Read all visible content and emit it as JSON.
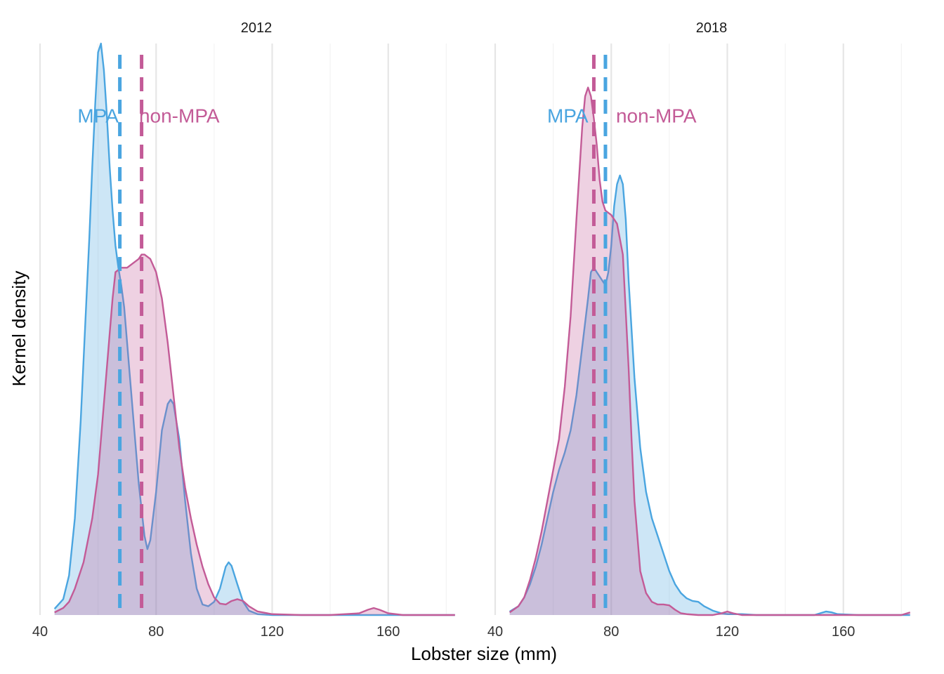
{
  "chart_data": {
    "type": "area",
    "xlabel": "Lobster size (mm)",
    "ylabel": "Kernel density",
    "xlim": [
      40,
      185
    ],
    "ylim": [
      0,
      0.065
    ],
    "x_ticks": [
      40,
      80,
      120,
      160
    ],
    "y_ticks_shown": false,
    "grid": "vertical",
    "colors": {
      "MPA": "#4aa5e0",
      "non-MPA": "#c35b97"
    },
    "panels": [
      {
        "title": "2012",
        "label_y": 0.0568,
        "label_x": {
          "MPA": 60,
          "non-MPA": 88
        },
        "series": [
          {
            "name": "MPA",
            "mean": 67.5,
            "x": [
              45,
              48,
              50,
              52,
              54,
              56,
              57,
              58,
              59,
              60,
              61,
              62,
              63,
              64,
              65,
              66,
              67,
              68,
              69,
              70,
              72,
              74,
              76,
              77,
              78,
              80,
              82,
              84,
              85,
              86,
              88,
              90,
              92,
              94,
              96,
              98,
              100,
              102,
              104,
              105,
              106,
              108,
              110,
              112,
              115,
              120,
              140,
              160,
              183
            ],
            "y": [
              0.0007,
              0.0018,
              0.0045,
              0.011,
              0.022,
              0.036,
              0.043,
              0.051,
              0.058,
              0.064,
              0.065,
              0.062,
              0.057,
              0.051,
              0.046,
              0.042,
              0.0395,
              0.0375,
              0.035,
              0.031,
              0.023,
              0.015,
              0.009,
              0.0075,
              0.0085,
              0.014,
              0.021,
              0.024,
              0.0245,
              0.024,
              0.02,
              0.013,
              0.007,
              0.003,
              0.0012,
              0.001,
              0.0015,
              0.003,
              0.0055,
              0.006,
              0.0056,
              0.0035,
              0.0015,
              0.0005,
              0.0001,
              0,
              0,
              0,
              0
            ]
          },
          {
            "name": "non-MPA",
            "mean": 75,
            "x": [
              45,
              48,
              50,
              52,
              55,
              58,
              60,
              62,
              64,
              65,
              66,
              68,
              70,
              72,
              74,
              75,
              76,
              78,
              80,
              82,
              84,
              86,
              88,
              90,
              92,
              94,
              96,
              98,
              100,
              102,
              104,
              106,
              108,
              110,
              112,
              115,
              120,
              130,
              140,
              150,
              153,
              155,
              157,
              160,
              165,
              183
            ],
            "y": [
              0.0003,
              0.0008,
              0.0015,
              0.003,
              0.006,
              0.011,
              0.016,
              0.024,
              0.032,
              0.036,
              0.039,
              0.0395,
              0.0395,
              0.04,
              0.0405,
              0.041,
              0.041,
              0.0405,
              0.039,
              0.036,
              0.031,
              0.025,
              0.019,
              0.0145,
              0.011,
              0.008,
              0.0055,
              0.0035,
              0.002,
              0.0013,
              0.0012,
              0.0016,
              0.0018,
              0.0016,
              0.001,
              0.0004,
              0.0001,
              0,
              0,
              0.0002,
              0.0006,
              0.0008,
              0.0006,
              0.0002,
              0,
              0
            ]
          }
        ]
      },
      {
        "title": "2018",
        "label_y": 0.0568,
        "label_x": {
          "MPA": 65,
          "non-MPA": 95.5
        },
        "series": [
          {
            "name": "MPA",
            "mean": 78,
            "x": [
              45,
              48,
              50,
              52,
              54,
              56,
              58,
              60,
              62,
              64,
              66,
              68,
              70,
              72,
              73,
              74,
              76,
              78,
              79,
              80,
              81,
              82,
              83,
              84,
              85,
              86,
              88,
              90,
              92,
              94,
              96,
              98,
              100,
              102,
              104,
              106,
              108,
              110,
              112,
              115,
              118,
              120,
              125,
              130,
              135,
              140,
              150,
              152,
              154,
              156,
              158,
              165,
              183
            ],
            "y": [
              0.0004,
              0.001,
              0.002,
              0.0035,
              0.0055,
              0.008,
              0.011,
              0.014,
              0.0165,
              0.0185,
              0.021,
              0.025,
              0.0305,
              0.036,
              0.039,
              0.0395,
              0.0385,
              0.0375,
              0.039,
              0.042,
              0.0465,
              0.049,
              0.05,
              0.049,
              0.045,
              0.038,
              0.027,
              0.019,
              0.014,
              0.011,
              0.009,
              0.007,
              0.005,
              0.0035,
              0.0025,
              0.0019,
              0.0016,
              0.0015,
              0.001,
              0.0005,
              0.0002,
              0.0001,
              0.0001,
              0,
              0,
              0,
              0,
              0.0002,
              0.0004,
              0.0003,
              0.0001,
              0,
              0
            ]
          },
          {
            "name": "non-MPA",
            "mean": 74,
            "x": [
              45,
              48,
              50,
              52,
              54,
              56,
              58,
              60,
              62,
              64,
              66,
              68,
              70,
              71,
              72,
              73,
              74,
              75,
              76,
              77,
              78,
              80,
              82,
              84,
              86,
              87,
              88,
              90,
              92,
              94,
              96,
              98,
              100,
              102,
              104,
              106,
              110,
              115,
              118,
              120,
              122,
              125,
              130,
              140,
              160,
              180,
              183
            ],
            "y": [
              0.0003,
              0.001,
              0.002,
              0.004,
              0.0065,
              0.0095,
              0.013,
              0.0165,
              0.02,
              0.026,
              0.034,
              0.045,
              0.0555,
              0.059,
              0.06,
              0.059,
              0.0565,
              0.0535,
              0.0495,
              0.047,
              0.046,
              0.0455,
              0.0445,
              0.041,
              0.028,
              0.02,
              0.013,
              0.005,
              0.0025,
              0.0015,
              0.0012,
              0.0012,
              0.0011,
              0.0006,
              0.0002,
              0.0001,
              0,
              0,
              0.0002,
              0.0004,
              0.0002,
              0,
              0,
              0,
              0,
              0,
              0.0003
            ]
          }
        ]
      }
    ]
  }
}
